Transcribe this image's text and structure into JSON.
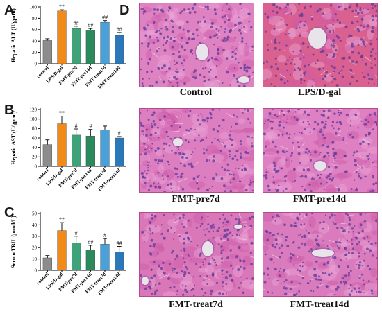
{
  "panel_letters": {
    "a": "A",
    "b": "B",
    "c": "C",
    "d": "D"
  },
  "colors": {
    "control": "#8c8c8c",
    "lps": "#f28a1a",
    "pre7": "#3fa37a",
    "pre14": "#2a8a5c",
    "treat7": "#4aa0d8",
    "treat14": "#2a78b8",
    "tissue": "#d86bb4",
    "nuclei": "#5b3a9a"
  },
  "chart_data": [
    {
      "type": "bar",
      "id": "A",
      "ylabel": "Hepatic ALT (U/gprot)",
      "ylim": [
        0,
        100
      ],
      "yticks": [
        0,
        20,
        40,
        60,
        80,
        100
      ],
      "categories": [
        "control",
        "LPS/D-gal",
        "FMT-pre7d",
        "FMT-pre14d",
        "FMT-treat7d",
        "FMT-treat14d"
      ],
      "values": [
        41,
        93,
        62,
        59,
        73,
        50
      ],
      "errors": [
        3,
        2,
        4,
        3,
        3,
        5
      ],
      "significance": [
        "",
        "**",
        "##",
        "##",
        "##",
        "##"
      ]
    },
    {
      "type": "bar",
      "id": "B",
      "ylabel": "Hepatic AST (U/gprot)",
      "ylim": [
        0,
        120
      ],
      "yticks": [
        0,
        20,
        40,
        60,
        80,
        100,
        120
      ],
      "categories": [
        "control",
        "LPS/D-gal",
        "FMT-pre7d",
        "FMT-pre14d",
        "FMT-treat7d",
        "FMT-treat14d"
      ],
      "values": [
        46,
        90,
        66,
        64,
        77,
        60
      ],
      "errors": [
        10,
        16,
        13,
        14,
        8,
        3
      ],
      "significance": [
        "",
        "**",
        "#",
        "#",
        "",
        "#"
      ]
    },
    {
      "type": "bar",
      "id": "C",
      "ylabel": "Serum TBIL (μmol/L)",
      "ylim": [
        0,
        50
      ],
      "yticks": [
        0,
        10,
        20,
        30,
        40,
        50
      ],
      "categories": [
        "control",
        "LPS/D-gal",
        "FMT-pre7d",
        "FMT-pre14d",
        "FMT-treat7d",
        "FMT-treat14d"
      ],
      "values": [
        11,
        35,
        24,
        18,
        23,
        16
      ],
      "errors": [
        2,
        7,
        6,
        4,
        5,
        5
      ],
      "significance": [
        "",
        "**",
        "#",
        "##",
        "#",
        "##"
      ]
    }
  ],
  "micrographs": [
    {
      "caption": "Control"
    },
    {
      "caption": "LPS/D-gal"
    },
    {
      "caption": "FMT-pre7d"
    },
    {
      "caption": "FMT-pre14d"
    },
    {
      "caption": "FMT-treat7d"
    },
    {
      "caption": "FMT-treat14d"
    }
  ]
}
